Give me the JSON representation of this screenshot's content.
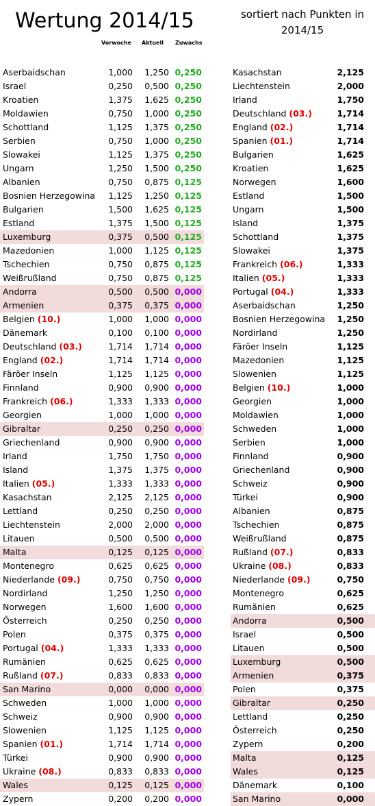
{
  "title": "Wertung 2014/15",
  "subtitle": "sortiert nach Punkten in 2014/15",
  "headers": {
    "prev": "Vorwoche",
    "current": "Aktuell",
    "gain": "Zuwachs"
  },
  "colors": {
    "highlight": "#f2dcdb",
    "gain_positive": "#22aa22",
    "gain_zero": "#a000e6",
    "rank_tag": "#e00000"
  },
  "left_table": [
    {
      "name": "Aserbaidschan",
      "tag": "",
      "prev": "1,000",
      "cur": "1,250",
      "gain": "0,250",
      "hl": false
    },
    {
      "name": "Israel",
      "tag": "",
      "prev": "0,250",
      "cur": "0,500",
      "gain": "0,250",
      "hl": false
    },
    {
      "name": "Kroatien",
      "tag": "",
      "prev": "1,375",
      "cur": "1,625",
      "gain": "0,250",
      "hl": false
    },
    {
      "name": "Moldawien",
      "tag": "",
      "prev": "0,750",
      "cur": "1,000",
      "gain": "0,250",
      "hl": false
    },
    {
      "name": "Schottland",
      "tag": "",
      "prev": "1,125",
      "cur": "1,375",
      "gain": "0,250",
      "hl": false
    },
    {
      "name": "Serbien",
      "tag": "",
      "prev": "0,750",
      "cur": "1,000",
      "gain": "0,250",
      "hl": false
    },
    {
      "name": "Slowakei",
      "tag": "",
      "prev": "1,125",
      "cur": "1,375",
      "gain": "0,250",
      "hl": false
    },
    {
      "name": "Ungarn",
      "tag": "",
      "prev": "1,250",
      "cur": "1,500",
      "gain": "0,250",
      "hl": false
    },
    {
      "name": "Albanien",
      "tag": "",
      "prev": "0,750",
      "cur": "0,875",
      "gain": "0,125",
      "hl": false
    },
    {
      "name": "Bosnien Herzegowina",
      "tag": "",
      "prev": "1,125",
      "cur": "1,250",
      "gain": "0,125",
      "hl": false
    },
    {
      "name": "Bulgarien",
      "tag": "",
      "prev": "1,500",
      "cur": "1,625",
      "gain": "0,125",
      "hl": false
    },
    {
      "name": "Estland",
      "tag": "",
      "prev": "1,375",
      "cur": "1,500",
      "gain": "0,125",
      "hl": false
    },
    {
      "name": "Luxemburg",
      "tag": "",
      "prev": "0,375",
      "cur": "0,500",
      "gain": "0,125",
      "hl": true
    },
    {
      "name": "Mazedonien",
      "tag": "",
      "prev": "1,000",
      "cur": "1,125",
      "gain": "0,125",
      "hl": false
    },
    {
      "name": "Tschechien",
      "tag": "",
      "prev": "0,750",
      "cur": "0,875",
      "gain": "0,125",
      "hl": false
    },
    {
      "name": "Weißrußland",
      "tag": "",
      "prev": "0,750",
      "cur": "0,875",
      "gain": "0,125",
      "hl": false
    },
    {
      "name": "Andorra",
      "tag": "",
      "prev": "0,500",
      "cur": "0,500",
      "gain": "0,000",
      "hl": true
    },
    {
      "name": "Armenien",
      "tag": "",
      "prev": "0,375",
      "cur": "0,375",
      "gain": "0,000",
      "hl": true
    },
    {
      "name": "Belgien",
      "tag": "(10.)",
      "prev": "1,000",
      "cur": "1,000",
      "gain": "0,000",
      "hl": false
    },
    {
      "name": "Dänemark",
      "tag": "",
      "prev": "0,100",
      "cur": "0,100",
      "gain": "0,000",
      "hl": false
    },
    {
      "name": "Deutschland",
      "tag": "(03.)",
      "prev": "1,714",
      "cur": "1,714",
      "gain": "0,000",
      "hl": false
    },
    {
      "name": "England",
      "tag": "(02.)",
      "prev": "1,714",
      "cur": "1,714",
      "gain": "0,000",
      "hl": false
    },
    {
      "name": "Färöer Inseln",
      "tag": "",
      "prev": "1,125",
      "cur": "1,125",
      "gain": "0,000",
      "hl": false
    },
    {
      "name": "Finnland",
      "tag": "",
      "prev": "0,900",
      "cur": "0,900",
      "gain": "0,000",
      "hl": false
    },
    {
      "name": "Frankreich",
      "tag": "(06.)",
      "prev": "1,333",
      "cur": "1,333",
      "gain": "0,000",
      "hl": false
    },
    {
      "name": "Georgien",
      "tag": "",
      "prev": "1,000",
      "cur": "1,000",
      "gain": "0,000",
      "hl": false
    },
    {
      "name": "Gibraltar",
      "tag": "",
      "prev": "0,250",
      "cur": "0,250",
      "gain": "0,000",
      "hl": true
    },
    {
      "name": "Griechenland",
      "tag": "",
      "prev": "0,900",
      "cur": "0,900",
      "gain": "0,000",
      "hl": false
    },
    {
      "name": "Irland",
      "tag": "",
      "prev": "1,750",
      "cur": "1,750",
      "gain": "0,000",
      "hl": false
    },
    {
      "name": "Island",
      "tag": "",
      "prev": "1,375",
      "cur": "1,375",
      "gain": "0,000",
      "hl": false
    },
    {
      "name": "Italien",
      "tag": "(05.)",
      "prev": "1,333",
      "cur": "1,333",
      "gain": "0,000",
      "hl": false
    },
    {
      "name": "Kasachstan",
      "tag": "",
      "prev": "2,125",
      "cur": "2,125",
      "gain": "0,000",
      "hl": false
    },
    {
      "name": "Lettland",
      "tag": "",
      "prev": "0,250",
      "cur": "0,250",
      "gain": "0,000",
      "hl": false
    },
    {
      "name": "Liechtenstein",
      "tag": "",
      "prev": "2,000",
      "cur": "2,000",
      "gain": "0,000",
      "hl": false
    },
    {
      "name": "Litauen",
      "tag": "",
      "prev": "0,500",
      "cur": "0,500",
      "gain": "0,000",
      "hl": false
    },
    {
      "name": "Malta",
      "tag": "",
      "prev": "0,125",
      "cur": "0,125",
      "gain": "0,000",
      "hl": true
    },
    {
      "name": "Montenegro",
      "tag": "",
      "prev": "0,625",
      "cur": "0,625",
      "gain": "0,000",
      "hl": false
    },
    {
      "name": "Niederlande",
      "tag": "(09.)",
      "prev": "0,750",
      "cur": "0,750",
      "gain": "0,000",
      "hl": false
    },
    {
      "name": "Nordirland",
      "tag": "",
      "prev": "1,250",
      "cur": "1,250",
      "gain": "0,000",
      "hl": false
    },
    {
      "name": "Norwegen",
      "tag": "",
      "prev": "1,600",
      "cur": "1,600",
      "gain": "0,000",
      "hl": false
    },
    {
      "name": "Österreich",
      "tag": "",
      "prev": "0,250",
      "cur": "0,250",
      "gain": "0,000",
      "hl": false
    },
    {
      "name": "Polen",
      "tag": "",
      "prev": "0,375",
      "cur": "0,375",
      "gain": "0,000",
      "hl": false
    },
    {
      "name": "Portugal",
      "tag": "(04.)",
      "prev": "1,333",
      "cur": "1,333",
      "gain": "0,000",
      "hl": false
    },
    {
      "name": "Rumänien",
      "tag": "",
      "prev": "0,625",
      "cur": "0,625",
      "gain": "0,000",
      "hl": false
    },
    {
      "name": "Rußland",
      "tag": "(07.)",
      "prev": "0,833",
      "cur": "0,833",
      "gain": "0,000",
      "hl": false
    },
    {
      "name": "San Marino",
      "tag": "",
      "prev": "0,000",
      "cur": "0,000",
      "gain": "0,000",
      "hl": true
    },
    {
      "name": "Schweden",
      "tag": "",
      "prev": "1,000",
      "cur": "1,000",
      "gain": "0,000",
      "hl": false
    },
    {
      "name": "Schweiz",
      "tag": "",
      "prev": "0,900",
      "cur": "0,900",
      "gain": "0,000",
      "hl": false
    },
    {
      "name": "Slowenien",
      "tag": "",
      "prev": "1,125",
      "cur": "1,125",
      "gain": "0,000",
      "hl": false
    },
    {
      "name": "Spanien",
      "tag": "(01.)",
      "prev": "1,714",
      "cur": "1,714",
      "gain": "0,000",
      "hl": false
    },
    {
      "name": "Türkei",
      "tag": "",
      "prev": "0,900",
      "cur": "0,900",
      "gain": "0,000",
      "hl": false
    },
    {
      "name": "Ukraine",
      "tag": "(08.)",
      "prev": "0,833",
      "cur": "0,833",
      "gain": "0,000",
      "hl": false
    },
    {
      "name": "Wales",
      "tag": "",
      "prev": "0,125",
      "cur": "0,125",
      "gain": "0,000",
      "hl": true
    },
    {
      "name": "Zypern",
      "tag": "",
      "prev": "0,200",
      "cur": "0,200",
      "gain": "0,000",
      "hl": false
    }
  ],
  "right_table": [
    {
      "name": "Kasachstan",
      "tag": "",
      "value": "2,125",
      "hl": false
    },
    {
      "name": "Liechtenstein",
      "tag": "",
      "value": "2,000",
      "hl": false
    },
    {
      "name": "Irland",
      "tag": "",
      "value": "1,750",
      "hl": false
    },
    {
      "name": "Deutschland",
      "tag": "(03.)",
      "value": "1,714",
      "hl": false
    },
    {
      "name": "England",
      "tag": "(02.)",
      "value": "1,714",
      "hl": false
    },
    {
      "name": "Spanien",
      "tag": "(01.)",
      "value": "1,714",
      "hl": false
    },
    {
      "name": "Bulgarien",
      "tag": "",
      "value": "1,625",
      "hl": false
    },
    {
      "name": "Kroatien",
      "tag": "",
      "value": "1,625",
      "hl": false
    },
    {
      "name": "Norwegen",
      "tag": "",
      "value": "1,600",
      "hl": false
    },
    {
      "name": "Estland",
      "tag": "",
      "value": "1,500",
      "hl": false
    },
    {
      "name": "Ungarn",
      "tag": "",
      "value": "1,500",
      "hl": false
    },
    {
      "name": "Island",
      "tag": "",
      "value": "1,375",
      "hl": false
    },
    {
      "name": "Schottland",
      "tag": "",
      "value": "1,375",
      "hl": false
    },
    {
      "name": "Slowakei",
      "tag": "",
      "value": "1,375",
      "hl": false
    },
    {
      "name": "Frankreich",
      "tag": "(06.)",
      "value": "1,333",
      "hl": false
    },
    {
      "name": "Italien",
      "tag": "(05.)",
      "value": "1,333",
      "hl": false
    },
    {
      "name": "Portugal",
      "tag": "(04.)",
      "value": "1,333",
      "hl": false
    },
    {
      "name": "Aserbaidschan",
      "tag": "",
      "value": "1,250",
      "hl": false
    },
    {
      "name": "Bosnien Herzegowina",
      "tag": "",
      "value": "1,250",
      "hl": false
    },
    {
      "name": "Nordirland",
      "tag": "",
      "value": "1,250",
      "hl": false
    },
    {
      "name": "Färöer Inseln",
      "tag": "",
      "value": "1,125",
      "hl": false
    },
    {
      "name": "Mazedonien",
      "tag": "",
      "value": "1,125",
      "hl": false
    },
    {
      "name": "Slowenien",
      "tag": "",
      "value": "1,125",
      "hl": false
    },
    {
      "name": "Belgien",
      "tag": "(10.)",
      "value": "1,000",
      "hl": false
    },
    {
      "name": "Georgien",
      "tag": "",
      "value": "1,000",
      "hl": false
    },
    {
      "name": "Moldawien",
      "tag": "",
      "value": "1,000",
      "hl": false
    },
    {
      "name": "Schweden",
      "tag": "",
      "value": "1,000",
      "hl": false
    },
    {
      "name": "Serbien",
      "tag": "",
      "value": "1,000",
      "hl": false
    },
    {
      "name": "Finnland",
      "tag": "",
      "value": "0,900",
      "hl": false
    },
    {
      "name": "Griechenland",
      "tag": "",
      "value": "0,900",
      "hl": false
    },
    {
      "name": "Schweiz",
      "tag": "",
      "value": "0,900",
      "hl": false
    },
    {
      "name": "Türkei",
      "tag": "",
      "value": "0,900",
      "hl": false
    },
    {
      "name": "Albanien",
      "tag": "",
      "value": "0,875",
      "hl": false
    },
    {
      "name": "Tschechien",
      "tag": "",
      "value": "0,875",
      "hl": false
    },
    {
      "name": "Weißrußland",
      "tag": "",
      "value": "0,875",
      "hl": false
    },
    {
      "name": "Rußland",
      "tag": "(07.)",
      "value": "0,833",
      "hl": false
    },
    {
      "name": "Ukraine",
      "tag": "(08.)",
      "value": "0,833",
      "hl": false
    },
    {
      "name": "Niederlande",
      "tag": "(09.)",
      "value": "0,750",
      "hl": false
    },
    {
      "name": "Montenegro",
      "tag": "",
      "value": "0,625",
      "hl": false
    },
    {
      "name": "Rumänien",
      "tag": "",
      "value": "0,625",
      "hl": false
    },
    {
      "name": "Andorra",
      "tag": "",
      "value": "0,500",
      "hl": true
    },
    {
      "name": "Israel",
      "tag": "",
      "value": "0,500",
      "hl": false
    },
    {
      "name": "Litauen",
      "tag": "",
      "value": "0,500",
      "hl": false
    },
    {
      "name": "Luxemburg",
      "tag": "",
      "value": "0,500",
      "hl": true
    },
    {
      "name": "Armenien",
      "tag": "",
      "value": "0,375",
      "hl": true
    },
    {
      "name": "Polen",
      "tag": "",
      "value": "0,375",
      "hl": false
    },
    {
      "name": "Gibraltar",
      "tag": "",
      "value": "0,250",
      "hl": true
    },
    {
      "name": "Lettland",
      "tag": "",
      "value": "0,250",
      "hl": false
    },
    {
      "name": "Österreich",
      "tag": "",
      "value": "0,250",
      "hl": false
    },
    {
      "name": "Zypern",
      "tag": "",
      "value": "0,200",
      "hl": false
    },
    {
      "name": "Malta",
      "tag": "",
      "value": "0,125",
      "hl": true
    },
    {
      "name": "Wales",
      "tag": "",
      "value": "0,125",
      "hl": true
    },
    {
      "name": "Dänemark",
      "tag": "",
      "value": "0,100",
      "hl": false
    },
    {
      "name": "San Marino",
      "tag": "",
      "value": "0,000",
      "hl": true
    }
  ]
}
